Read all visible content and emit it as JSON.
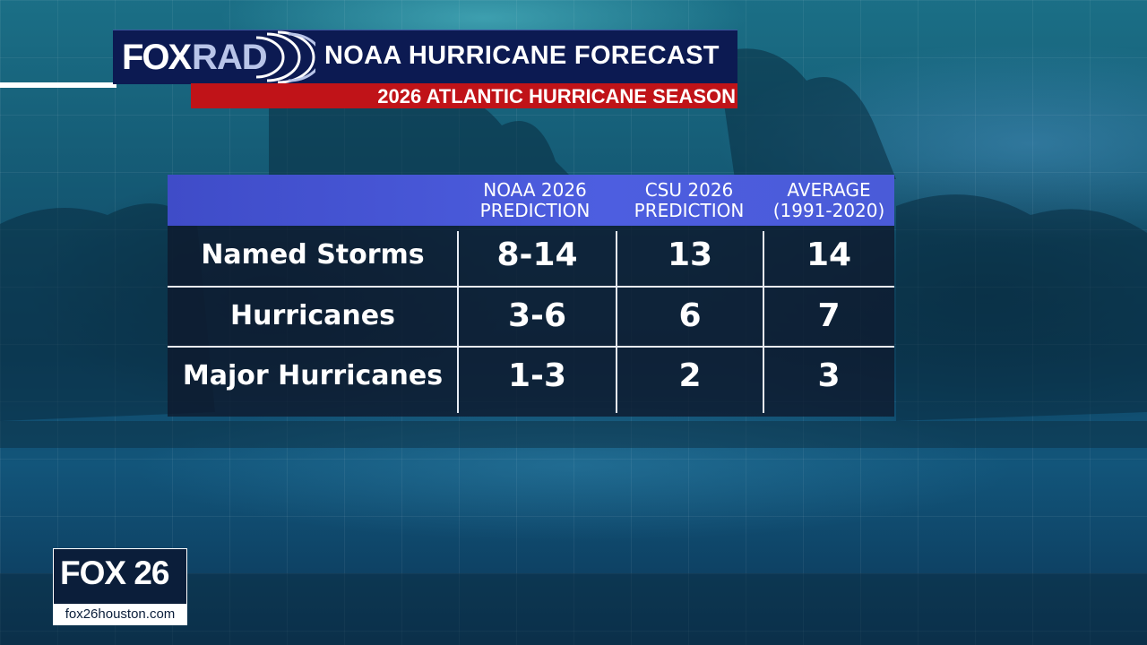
{
  "header": {
    "logo_fox": "FOX",
    "logo_rad": "RAD",
    "title": "NOAA HURRICANE FORECAST",
    "subtitle": "2026 ATLANTIC HURRICANE SEASON"
  },
  "table": {
    "columns": [
      "NOAA 2026\nPREDICTION",
      "CSU 2026\nPREDICTION",
      "AVERAGE\n(1991-2020)"
    ],
    "rows": [
      {
        "label": "Named Storms",
        "values": [
          "8-14",
          "13",
          "14"
        ]
      },
      {
        "label": "Hurricanes",
        "values": [
          "3-6",
          "6",
          "7"
        ]
      },
      {
        "label": "Major Hurricanes",
        "values": [
          "1-3",
          "2",
          "3"
        ]
      }
    ]
  },
  "station": {
    "name": "FOX 26",
    "url": "fox26houston.com"
  },
  "colors": {
    "header_navy": "#0c1a52",
    "subtitle_red": "#c01318",
    "table_header_blue": "#4d5ee0"
  }
}
